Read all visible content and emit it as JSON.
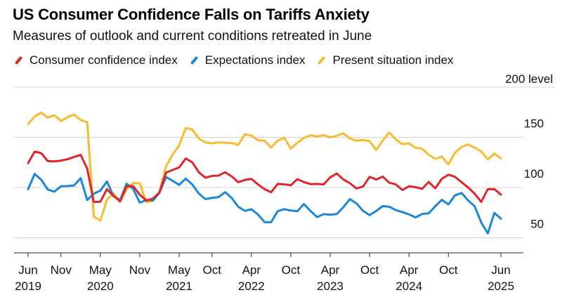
{
  "chart_data": {
    "type": "line",
    "title": "US Consumer Confidence Falls on Tariffs Anxiety",
    "subtitle": "Measures of outlook and current conditions retreated in June",
    "y_unit_label": "200 level",
    "ylim": [
      35,
      200
    ],
    "y_ticks": [
      50,
      100,
      150
    ],
    "x_ticks": [
      {
        "month": 0,
        "line1": "Jun",
        "line2": "2019"
      },
      {
        "month": 5,
        "line1": "Nov",
        "line2": ""
      },
      {
        "month": 11,
        "line1": "May",
        "line2": "2020"
      },
      {
        "month": 17,
        "line1": "Nov",
        "line2": ""
      },
      {
        "month": 23,
        "line1": "May",
        "line2": "2021"
      },
      {
        "month": 28,
        "line1": "Oct",
        "line2": ""
      },
      {
        "month": 34,
        "line1": "Apr",
        "line2": "2022"
      },
      {
        "month": 40,
        "line1": "Oct",
        "line2": ""
      },
      {
        "month": 46,
        "line1": "Apr",
        "line2": "2023"
      },
      {
        "month": 52,
        "line1": "Oct",
        "line2": ""
      },
      {
        "month": 58,
        "line1": "Apr",
        "line2": "2024"
      },
      {
        "month": 64,
        "line1": "Oct",
        "line2": ""
      },
      {
        "month": 72,
        "line1": "Jun",
        "line2": "2025"
      }
    ],
    "x_start": "2019-06",
    "series": [
      {
        "name": "Consumer confidence index",
        "color": "#e0242b",
        "values": [
          124.3,
          135.8,
          134.2,
          126.3,
          126.1,
          126.8,
          128.2,
          130.4,
          132.6,
          118.8,
          85.7,
          85.9,
          98.3,
          91.7,
          86.3,
          101.3,
          101.4,
          92.9,
          87.1,
          88.9,
          95.2,
          114.9,
          117.5,
          120.0,
          128.9,
          125.1,
          115.2,
          109.8,
          111.6,
          111.9,
          115.2,
          111.1,
          105.3,
          107.6,
          108.6,
          103.2,
          98.4,
          95.3,
          103.6,
          103.2,
          102.2,
          108.3,
          105.5,
          103.4,
          103.6,
          103.1,
          110.1,
          114.0,
          108.0,
          104.3,
          99.1,
          101.0,
          110.7,
          108.0,
          110.9,
          104.8,
          103.1,
          97.5,
          101.3,
          100.4,
          98.7,
          105.6,
          99.2,
          108.7,
          112.8,
          110.7,
          105.3,
          100.1,
          93.9,
          85.7,
          98.4,
          98.4,
          93.0
        ]
      },
      {
        "name": "Expectations index",
        "color": "#1a87dc",
        "values": [
          98.4,
          113.6,
          107.8,
          98.0,
          95.9,
          101.3,
          101.5,
          102.1,
          109.3,
          87.6,
          93.9,
          96.9,
          106.1,
          91.4,
          87.5,
          103.8,
          98.6,
          85.0,
          87.5,
          87.2,
          94.7,
          110.5,
          106.7,
          102.7,
          108.9,
          103.1,
          94.0,
          88.5,
          89.7,
          90.5,
          95.4,
          89.6,
          80.9,
          76.8,
          78.4,
          73.2,
          65.6,
          65.4,
          76.5,
          78.5,
          77.1,
          76.4,
          83.6,
          76.7,
          70.6,
          73.5,
          72.9,
          73.6,
          80.4,
          88.5,
          84.2,
          76.8,
          72.6,
          76.7,
          81.5,
          80.9,
          77.5,
          75.5,
          73.3,
          70.3,
          73.7,
          74.3,
          81.4,
          87.8,
          83.2,
          92.2,
          94.6,
          87.2,
          81.4,
          65.2,
          54.4,
          74.8,
          69.0
        ]
      },
      {
        "name": "Present situation index",
        "color": "#f7bb2c",
        "values": [
          163.4,
          170.6,
          174.6,
          169.6,
          172.0,
          166.3,
          170.0,
          172.6,
          167.2,
          165.1,
          71.3,
          67.1,
          87.8,
          94.4,
          85.7,
          98.5,
          104.5,
          104.3,
          85.5,
          86.7,
          95.6,
          121.2,
          132.8,
          141.9,
          159.2,
          157.7,
          148.7,
          145.0,
          144.0,
          144.9,
          144.6,
          144.2,
          142.5,
          153.0,
          151.8,
          147.1,
          146.6,
          139.7,
          146.7,
          149.5,
          138.8,
          144.6,
          149.3,
          152.0,
          150.8,
          152.3,
          149.9,
          151.6,
          154.0,
          148.8,
          146.6,
          147.3,
          146.1,
          137.3,
          146.8,
          154.9,
          147.8,
          143.2,
          144.0,
          139.7,
          138.5,
          132.8,
          128.5,
          130.8,
          123.0,
          134.6,
          140.4,
          142.8,
          139.7,
          135.9,
          128.1,
          133.9,
          129.1
        ]
      }
    ]
  }
}
